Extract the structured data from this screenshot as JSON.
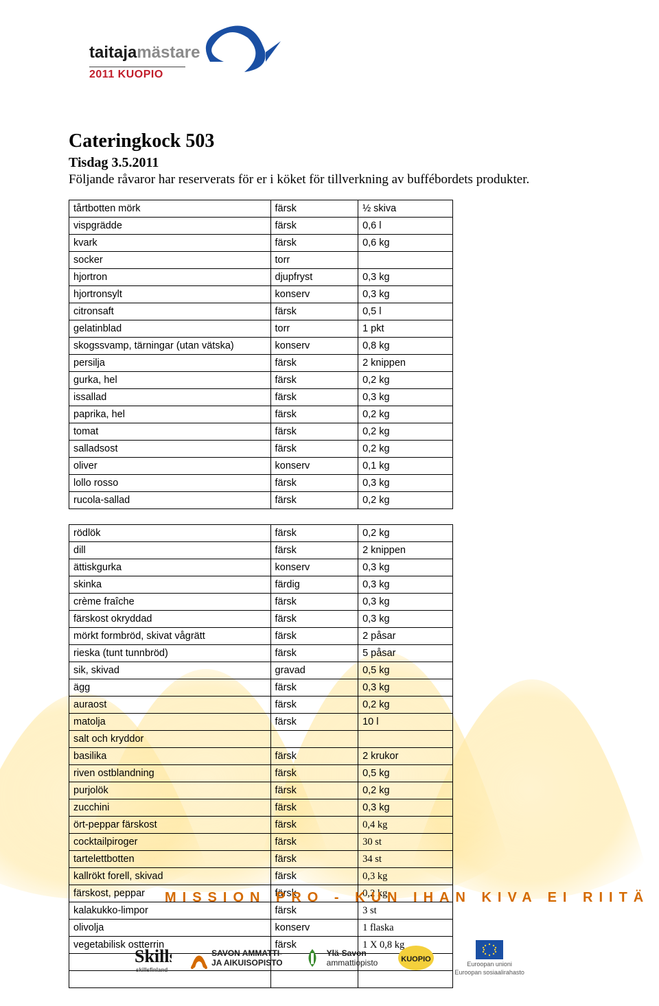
{
  "logo": {
    "main": "taitaja",
    "grey": "mästare",
    "sub": "2011 KUOPIO"
  },
  "title": "Cateringkock 503",
  "date": "Tisdag 3.5.2011",
  "intro": "Följande råvaror har reserverats för er i köket för tillverkning av buffébordets produkter.",
  "table1": [
    [
      "tårtbotten mörk",
      "färsk",
      "½ skiva"
    ],
    [
      "vispgrädde",
      "färsk",
      "0,6 l"
    ],
    [
      "kvark",
      "färsk",
      "0,6 kg"
    ],
    [
      "socker",
      "torr",
      ""
    ],
    [
      "hjortron",
      "djupfryst",
      "0,3 kg"
    ],
    [
      "hjortronsylt",
      "konserv",
      "0,3 kg"
    ],
    [
      "citronsaft",
      "färsk",
      "0,5 l"
    ],
    [
      "gelatinblad",
      "torr",
      "1 pkt"
    ],
    [
      "skogssvamp, tärningar (utan vätska)",
      "konserv",
      "0,8 kg"
    ],
    [
      "persilja",
      "färsk",
      "2 knippen"
    ],
    [
      "gurka, hel",
      "färsk",
      "0,2 kg"
    ],
    [
      "issallad",
      "färsk",
      "0,3 kg"
    ],
    [
      "paprika, hel",
      "färsk",
      "0,2 kg"
    ],
    [
      "tomat",
      "färsk",
      "0,2 kg"
    ],
    [
      "salladsost",
      "färsk",
      "0,2 kg"
    ],
    [
      "oliver",
      "konserv",
      "0,1 kg"
    ],
    [
      "lollo rosso",
      "färsk",
      "0,3 kg"
    ],
    [
      "rucola-sallad",
      "färsk",
      "0,2 kg"
    ]
  ],
  "table2": [
    [
      "rödlök",
      "färsk",
      "0,2 kg"
    ],
    [
      "dill",
      "färsk",
      "2 knippen"
    ],
    [
      "ättiskgurka",
      "konserv",
      "0,3 kg"
    ],
    [
      "skinka",
      "färdig",
      "0,3 kg"
    ],
    [
      "crème fraîche",
      "färsk",
      "0,3 kg"
    ],
    [
      "färskost okryddad",
      "färsk",
      "0,3 kg"
    ],
    [
      "mörkt formbröd, skivat vågrätt",
      "färsk",
      "2 påsar"
    ],
    [
      "rieska (tunt tunnbröd)",
      "färsk",
      "5 påsar"
    ],
    [
      "sik, skivad",
      "gravad",
      "0,5 kg"
    ],
    [
      "ägg",
      "färsk",
      "0,3 kg"
    ],
    [
      "auraost",
      "färsk",
      "0,2 kg"
    ],
    [
      "matolja",
      "färsk",
      "10 l"
    ],
    [
      "salt och kryddor",
      "",
      ""
    ],
    [
      "basilika",
      "färsk",
      "2 krukor"
    ],
    [
      "riven ostblandning",
      "färsk",
      "0,5 kg"
    ],
    [
      "purjolök",
      "färsk",
      "0,2 kg"
    ],
    [
      "zucchini",
      "färsk",
      "0,3 kg"
    ],
    [
      "ört-peppar färskost",
      "färsk",
      "0,4 kg",
      "times"
    ],
    [
      "cocktailpiroger",
      "färsk",
      "30 st",
      "times"
    ],
    [
      "tartelettbotten",
      "färsk",
      "34 st",
      "times"
    ],
    [
      "kallrökt forell, skivad",
      "färsk",
      "0,3 kg",
      "times"
    ],
    [
      "färskost, peppar",
      "färsk",
      "0,2 kg",
      "times"
    ],
    [
      "kalakukko-limpor",
      "färsk",
      "3 st",
      "times"
    ],
    [
      "olivolja",
      "konserv",
      "1 flaska",
      "times"
    ],
    [
      "vegetabilisk ostterrin",
      "färsk",
      "1 X 0,8 kg",
      "times"
    ],
    [
      "",
      "",
      ""
    ],
    [
      "",
      "",
      ""
    ]
  ],
  "slogan": "MISSION  PRO  -  KUN  IHAN  KIVA  EI  RIITÄ",
  "sponsors": {
    "skills": "skillsfinland",
    "savon1": "SAVON AMMATTI-",
    "savon2": "JA AIKUISOPISTO",
    "yla1": "Ylä-Savon",
    "yla2": "ammattiopisto",
    "kuopio": "KUOPIO",
    "eu1": "Euroopan unioni",
    "eu2": "Euroopan sosiaalirahasto"
  }
}
